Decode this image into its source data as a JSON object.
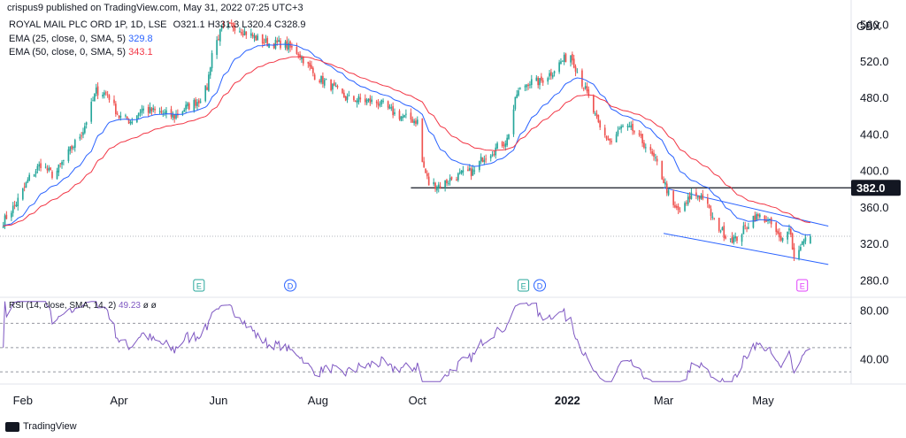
{
  "header": {
    "byline": "crispus9 published on TradingView.com, May 31, 2022 07:25 UTC+3",
    "symbol": "ROYAL MAIL PLC ORD 1P, 1D, LSE",
    "ohlc_o_label": "O",
    "ohlc_o": "321.1",
    "ohlc_h_label": "H",
    "ohlc_h": "331.3",
    "ohlc_l_label": "L",
    "ohlc_l": "320.4",
    "ohlc_c_label": "C",
    "ohlc_c": "328.9",
    "ema25_label": "EMA (25, close, 0, SMA, 5)",
    "ema25_value": "329.8",
    "ema50_label": "EMA (50, close, 0, SMA, 5)",
    "ema50_value": "343.1",
    "currency": "GBX",
    "footer_logo": "TradingView"
  },
  "colors": {
    "up": "#26a69a",
    "down": "#ef5350",
    "ema25": "#2962ff",
    "ema50": "#f23645",
    "rsi": "#7e57c2",
    "channel": "#2962ff",
    "support": "#131722"
  },
  "chart_data": [
    {
      "type": "candlestick",
      "price_axis_ticks": [
        560.0,
        520.0,
        480.0,
        440.0,
        400.0,
        360.0,
        320.0,
        280.0
      ],
      "price_axis_labels": [
        "560.0",
        "520.0",
        "480.0",
        "440.0",
        "400.0",
        "360.0",
        "320.0",
        "280.0"
      ],
      "ylim": [
        262,
        580
      ],
      "time_axis_labels": [
        "Feb",
        "Apr",
        "Jun",
        "Aug",
        "Oct",
        "2022",
        "Mar",
        "May"
      ],
      "horizontal_line": {
        "value": 382.0,
        "label": "382.0"
      },
      "last_price_line": 328.9,
      "close_anchors": [
        [
          "2021-01-20",
          345
        ],
        [
          "2021-01-28",
          365
        ],
        [
          "2021-02-05",
          393
        ],
        [
          "2021-02-12",
          408
        ],
        [
          "2021-02-20",
          395
        ],
        [
          "2021-03-01",
          420
        ],
        [
          "2021-03-10",
          445
        ],
        [
          "2021-03-18",
          488
        ],
        [
          "2021-03-25",
          485
        ],
        [
          "2021-04-01",
          460
        ],
        [
          "2021-04-08",
          455
        ],
        [
          "2021-04-15",
          468
        ],
        [
          "2021-04-25",
          465
        ],
        [
          "2021-05-05",
          460
        ],
        [
          "2021-05-12",
          470
        ],
        [
          "2021-05-20",
          478
        ],
        [
          "2021-05-25",
          492
        ],
        [
          "2021-05-28",
          530
        ],
        [
          "2021-06-03",
          556
        ],
        [
          "2021-06-10",
          560
        ],
        [
          "2021-06-18",
          552
        ],
        [
          "2021-06-25",
          545
        ],
        [
          "2021-07-02",
          540
        ],
        [
          "2021-07-10",
          540
        ],
        [
          "2021-07-20",
          530
        ],
        [
          "2021-07-25",
          518
        ],
        [
          "2021-07-30",
          505
        ],
        [
          "2021-08-08",
          495
        ],
        [
          "2021-08-18",
          480
        ],
        [
          "2021-08-28",
          478
        ],
        [
          "2021-09-08",
          475
        ],
        [
          "2021-09-18",
          462
        ],
        [
          "2021-09-25",
          458
        ],
        [
          "2021-10-01",
          455
        ],
        [
          "2021-10-04",
          410
        ],
        [
          "2021-10-08",
          386
        ],
        [
          "2021-10-15",
          385
        ],
        [
          "2021-10-22",
          392
        ],
        [
          "2021-10-30",
          398
        ],
        [
          "2021-11-05",
          400
        ],
        [
          "2021-11-10",
          415
        ],
        [
          "2021-11-18",
          425
        ],
        [
          "2021-11-25",
          435
        ],
        [
          "2021-12-01",
          485
        ],
        [
          "2021-12-08",
          498
        ],
        [
          "2021-12-15",
          498
        ],
        [
          "2021-12-22",
          508
        ],
        [
          "2021-12-28",
          520
        ],
        [
          "2022-01-03",
          528
        ],
        [
          "2022-01-08",
          505
        ],
        [
          "2022-01-13",
          485
        ],
        [
          "2022-01-18",
          460
        ],
        [
          "2022-01-22",
          442
        ],
        [
          "2022-01-28",
          432
        ],
        [
          "2022-02-03",
          448
        ],
        [
          "2022-02-10",
          445
        ],
        [
          "2022-02-18",
          428
        ],
        [
          "2022-02-25",
          408
        ],
        [
          "2022-03-02",
          385
        ],
        [
          "2022-03-07",
          360
        ],
        [
          "2022-03-12",
          355
        ],
        [
          "2022-03-18",
          375
        ],
        [
          "2022-03-25",
          372
        ],
        [
          "2022-04-01",
          345
        ],
        [
          "2022-04-08",
          330
        ],
        [
          "2022-04-14",
          325
        ],
        [
          "2022-04-20",
          338
        ],
        [
          "2022-04-25",
          350
        ],
        [
          "2022-05-01",
          350
        ],
        [
          "2022-05-07",
          340
        ],
        [
          "2022-05-12",
          322
        ],
        [
          "2022-05-17",
          342
        ],
        [
          "2022-05-20",
          305
        ],
        [
          "2022-05-24",
          320
        ],
        [
          "2022-05-30",
          329
        ]
      ],
      "series": [
        {
          "name": "EMA (25, close, 0, SMA, 5)",
          "last_value": 329.8
        },
        {
          "name": "EMA (50, close, 0, SMA, 5)",
          "last_value": 343.1
        }
      ],
      "events": [
        {
          "date": "2021-05-20",
          "label": "E"
        },
        {
          "date": "2021-07-15",
          "label": "D"
        },
        {
          "date": "2021-12-05",
          "label": "E"
        },
        {
          "date": "2021-12-15",
          "label": "D"
        },
        {
          "date": "2022-05-25",
          "label": "E"
        }
      ],
      "trend_lines": [
        {
          "from": [
            "2022-03-01",
            382
          ],
          "to": [
            "2022-06-10",
            340
          ]
        },
        {
          "from": [
            "2022-03-01",
            332
          ],
          "to": [
            "2022-06-10",
            298
          ]
        }
      ]
    },
    {
      "type": "line",
      "title": "RSI (14, close, SMA, 14, 2)",
      "last_value": 49.23,
      "na_1": "ø",
      "na_2": "ø",
      "y_axis_labels": [
        "80.00",
        "40.00"
      ],
      "ylim": [
        20,
        90
      ],
      "bands": [
        70,
        50,
        30
      ]
    }
  ]
}
